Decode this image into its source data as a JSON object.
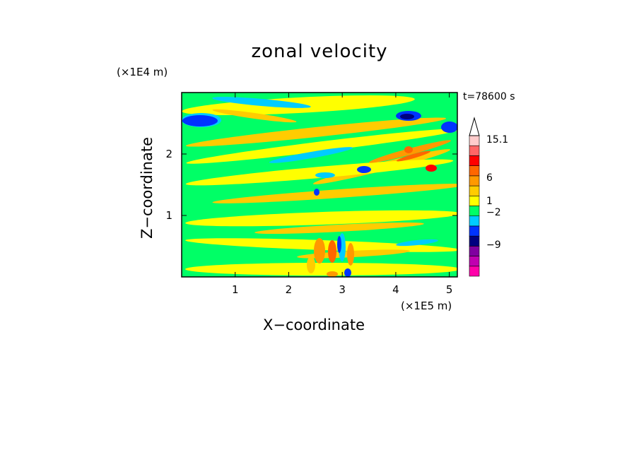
{
  "chart_data": {
    "type": "heatmap",
    "title": "zonal velocity",
    "xlabel": "X−coordinate",
    "ylabel": "Z−coordinate",
    "x_unit": "(×1E5 m)",
    "z_unit": "(×1E4 m)",
    "time_label": "t=78600 s",
    "xlim": [
      0,
      5.15
    ],
    "ylim": [
      0,
      3.0
    ],
    "x_ticks": [
      1,
      2,
      3,
      4,
      5
    ],
    "x_tick_labels": [
      "1",
      "2",
      "3",
      "4",
      "5"
    ],
    "y_ticks": [
      1,
      2
    ],
    "y_tick_labels": [
      "1",
      "2"
    ],
    "colorbar": {
      "colors": [
        "#ff00aa",
        "#c000b0",
        "#8000a0",
        "#000080",
        "#0033ff",
        "#00ccff",
        "#00ff66",
        "#ffff00",
        "#ffcc00",
        "#ff9900",
        "#ff6600",
        "#ff0000",
        "#ff6666",
        "#ffcccc",
        "#ffffff"
      ],
      "labels": [
        "15.1",
        "6",
        "1",
        "−2",
        "−9"
      ],
      "extend": "max"
    }
  }
}
